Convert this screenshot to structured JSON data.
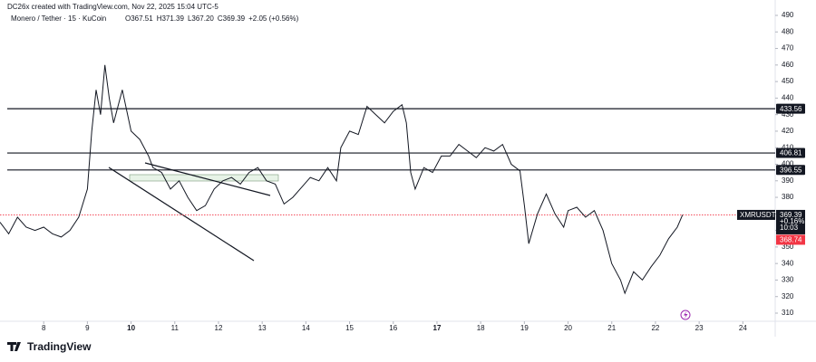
{
  "header": {
    "credit": "DC26x created with TradingView.com, Nov 22, 2025 15:04 UTC-5",
    "symbol": "Monero / Tether · 15 · KuCoin",
    "ohlc": [
      "O367.51",
      "H371.39",
      "L367.20",
      "C369.39",
      "+2.05 (+0.56%)"
    ]
  },
  "logo": "TradingView",
  "chart_data": {
    "type": "line",
    "color": "#131722",
    "xlim": [
      7,
      24.74
    ],
    "ylim": [
      310,
      490
    ],
    "xticks": [
      8,
      9,
      10,
      11,
      12,
      13,
      14,
      15,
      16,
      17,
      18,
      19,
      20,
      21,
      22,
      23,
      24
    ],
    "bold_xticks": [
      10,
      17
    ],
    "yticks": [
      310,
      320,
      330,
      340,
      350,
      360,
      370,
      380,
      390,
      400,
      410,
      420,
      430,
      440,
      450,
      460,
      470,
      480,
      490
    ],
    "series": [
      {
        "name": "XMRUSDT",
        "x": [
          7.0,
          7.2,
          7.4,
          7.6,
          7.8,
          8.0,
          8.2,
          8.4,
          8.6,
          8.8,
          9.0,
          9.1,
          9.2,
          9.3,
          9.4,
          9.5,
          9.6,
          9.8,
          10.0,
          10.2,
          10.4,
          10.5,
          10.7,
          10.9,
          11.1,
          11.3,
          11.5,
          11.7,
          11.9,
          12.1,
          12.3,
          12.5,
          12.7,
          12.9,
          13.1,
          13.3,
          13.5,
          13.7,
          13.9,
          14.1,
          14.3,
          14.5,
          14.7,
          14.8,
          15.0,
          15.2,
          15.4,
          15.6,
          15.8,
          16.0,
          16.2,
          16.3,
          16.4,
          16.5,
          16.7,
          16.9,
          17.1,
          17.3,
          17.5,
          17.7,
          17.9,
          18.1,
          18.3,
          18.5,
          18.7,
          18.9,
          19.0,
          19.1,
          19.3,
          19.5,
          19.7,
          19.9,
          20.0,
          20.2,
          20.4,
          20.6,
          20.8,
          21.0,
          21.2,
          21.3,
          21.5,
          21.7,
          21.9,
          22.1,
          22.3,
          22.5,
          22.62
        ],
        "values": [
          365,
          358,
          368,
          362,
          360,
          362,
          358,
          356,
          360,
          368,
          385,
          420,
          445,
          430,
          460,
          440,
          425,
          445,
          420,
          415,
          405,
          398,
          395,
          385,
          390,
          380,
          372,
          375,
          385,
          390,
          392,
          388,
          395,
          398,
          390,
          388,
          376,
          380,
          386,
          392,
          390,
          398,
          390,
          410,
          420,
          418,
          435,
          430,
          425,
          432,
          436,
          425,
          395,
          385,
          398,
          395,
          405,
          405,
          412,
          408,
          404,
          410,
          408,
          412,
          400,
          396,
          375,
          352,
          370,
          382,
          370,
          362,
          372,
          374,
          368,
          372,
          360,
          340,
          330,
          322,
          335,
          330,
          338,
          345,
          355,
          362,
          369.39
        ]
      }
    ],
    "levels": [
      433.56,
      406.81,
      396.55
    ],
    "last_price": 369.39,
    "symbol_label": "XMRUSDT",
    "change_label": "+0.16%",
    "countdown": "10:03",
    "bid_price": 368.74
  }
}
